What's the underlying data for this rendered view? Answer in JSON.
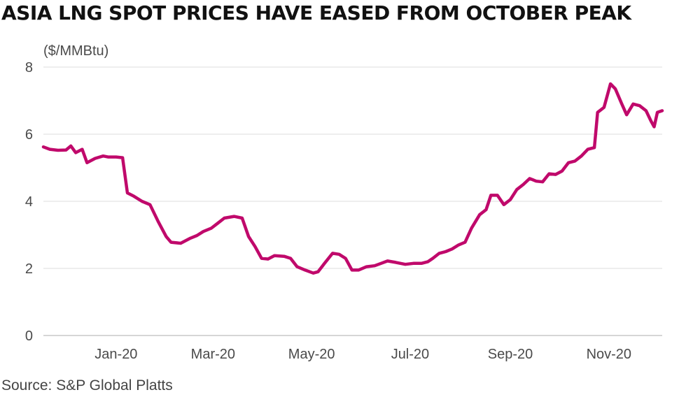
{
  "title": "ASIA LNG SPOT PRICES HAVE EASED FROM OCTOBER PEAK",
  "source": "Source: S&P Global Platts",
  "chart_data": {
    "type": "line",
    "title": "ASIA LNG SPOT PRICES HAVE EASED FROM OCTOBER PEAK",
    "ylabel": "($/MMBtu)",
    "xlabel": "",
    "ylim": [
      0,
      8
    ],
    "yticks": [
      0,
      2,
      4,
      6,
      8
    ],
    "grid": "horizontal",
    "x_tick_labels": [
      {
        "label": "Jan-20",
        "date": "2020-01-15"
      },
      {
        "label": "Mar-20",
        "date": "2020-03-15"
      },
      {
        "label": "May-20",
        "date": "2020-05-15"
      },
      {
        "label": "Jul-20",
        "date": "2020-07-15"
      },
      {
        "label": "Sep-20",
        "date": "2020-09-15"
      },
      {
        "label": "Nov-20",
        "date": "2020-11-15"
      }
    ],
    "line_color": "#c0096b",
    "series": [
      {
        "name": "",
        "points": [
          [
            "2019-12-01",
            5.62
          ],
          [
            "2019-12-05",
            5.55
          ],
          [
            "2019-12-10",
            5.52
          ],
          [
            "2019-12-15",
            5.53
          ],
          [
            "2019-12-18",
            5.65
          ],
          [
            "2019-12-21",
            5.45
          ],
          [
            "2019-12-25",
            5.55
          ],
          [
            "2019-12-28",
            5.15
          ],
          [
            "2020-01-02",
            5.28
          ],
          [
            "2020-01-07",
            5.35
          ],
          [
            "2020-01-10",
            5.32
          ],
          [
            "2020-01-15",
            5.32
          ],
          [
            "2020-01-19",
            5.3
          ],
          [
            "2020-01-22",
            4.25
          ],
          [
            "2020-01-26",
            4.15
          ],
          [
            "2020-01-31",
            4.0
          ],
          [
            "2020-02-05",
            3.9
          ],
          [
            "2020-02-10",
            3.4
          ],
          [
            "2020-02-15",
            2.95
          ],
          [
            "2020-02-18",
            2.78
          ],
          [
            "2020-02-24",
            2.75
          ],
          [
            "2020-03-01",
            2.9
          ],
          [
            "2020-03-05",
            2.98
          ],
          [
            "2020-03-09",
            3.1
          ],
          [
            "2020-03-14",
            3.2
          ],
          [
            "2020-03-18",
            3.35
          ],
          [
            "2020-03-22",
            3.5
          ],
          [
            "2020-03-28",
            3.55
          ],
          [
            "2020-04-02",
            3.5
          ],
          [
            "2020-04-06",
            2.95
          ],
          [
            "2020-04-10",
            2.65
          ],
          [
            "2020-04-14",
            2.3
          ],
          [
            "2020-04-18",
            2.28
          ],
          [
            "2020-04-22",
            2.38
          ],
          [
            "2020-04-28",
            2.36
          ],
          [
            "2020-05-02",
            2.3
          ],
          [
            "2020-05-06",
            2.05
          ],
          [
            "2020-05-11",
            1.95
          ],
          [
            "2020-05-16",
            1.86
          ],
          [
            "2020-05-19",
            1.9
          ],
          [
            "2020-05-23",
            2.15
          ],
          [
            "2020-05-28",
            2.45
          ],
          [
            "2020-06-01",
            2.42
          ],
          [
            "2020-06-05",
            2.3
          ],
          [
            "2020-06-09",
            1.95
          ],
          [
            "2020-06-13",
            1.95
          ],
          [
            "2020-06-18",
            2.05
          ],
          [
            "2020-06-23",
            2.08
          ],
          [
            "2020-06-27",
            2.15
          ],
          [
            "2020-07-01",
            2.22
          ],
          [
            "2020-07-06",
            2.18
          ],
          [
            "2020-07-12",
            2.12
          ],
          [
            "2020-07-17",
            2.15
          ],
          [
            "2020-07-22",
            2.15
          ],
          [
            "2020-07-26",
            2.2
          ],
          [
            "2020-07-29",
            2.3
          ],
          [
            "2020-08-02",
            2.45
          ],
          [
            "2020-08-06",
            2.5
          ],
          [
            "2020-08-10",
            2.58
          ],
          [
            "2020-08-14",
            2.7
          ],
          [
            "2020-08-18",
            2.78
          ],
          [
            "2020-08-22",
            3.2
          ],
          [
            "2020-08-27",
            3.6
          ],
          [
            "2020-08-31",
            3.75
          ],
          [
            "2020-09-03",
            4.18
          ],
          [
            "2020-09-07",
            4.18
          ],
          [
            "2020-09-11",
            3.9
          ],
          [
            "2020-09-15",
            4.05
          ],
          [
            "2020-09-19",
            4.35
          ],
          [
            "2020-09-23",
            4.5
          ],
          [
            "2020-09-27",
            4.68
          ],
          [
            "2020-10-01",
            4.6
          ],
          [
            "2020-10-05",
            4.58
          ],
          [
            "2020-10-09",
            4.82
          ],
          [
            "2020-10-13",
            4.8
          ],
          [
            "2020-10-17",
            4.9
          ],
          [
            "2020-10-21",
            5.15
          ],
          [
            "2020-10-25",
            5.2
          ],
          [
            "2020-10-29",
            5.35
          ],
          [
            "2020-11-02",
            5.55
          ],
          [
            "2020-11-06",
            5.6
          ],
          [
            "2020-11-08",
            6.65
          ],
          [
            "2020-11-12",
            6.8
          ],
          [
            "2020-11-16",
            7.5
          ],
          [
            "2020-11-19",
            7.35
          ],
          [
            "2020-11-23",
            6.9
          ],
          [
            "2020-11-26",
            6.58
          ],
          [
            "2020-11-30",
            6.9
          ],
          [
            "2020-12-04",
            6.85
          ],
          [
            "2020-12-08",
            6.7
          ],
          [
            "2020-12-11",
            6.4
          ],
          [
            "2020-12-13",
            6.22
          ],
          [
            "2020-12-15",
            6.65
          ],
          [
            "2020-12-18",
            6.7
          ]
        ]
      }
    ]
  }
}
